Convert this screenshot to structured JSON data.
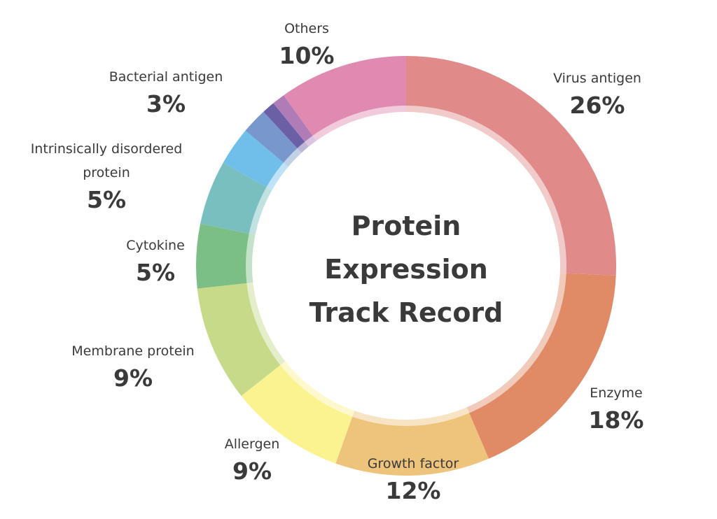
{
  "chart_data": {
    "type": "pie",
    "title": "Protein Expression Track Record",
    "categories": [
      "Virus antigen",
      "Enzyme",
      "Growth factor",
      "Allergen",
      "Membrane protein",
      "Cytokine",
      "Intrinsically disordered protein",
      "Bacterial antigen",
      null,
      null,
      null,
      "Others"
    ],
    "values": [
      26,
      18,
      12,
      9,
      9,
      5,
      5,
      3,
      2,
      1,
      1,
      10
    ],
    "value_labels": [
      "26%",
      "18%",
      "12%",
      "9%",
      "9%",
      "5%",
      "5%",
      "3%",
      null,
      null,
      null,
      "10%"
    ],
    "colors": [
      "#e08a8a",
      "#e08a66",
      "#eec47c",
      "#fbf290",
      "#c6da8a",
      "#7cbf86",
      "#79bfbf",
      "#70bfea",
      "#7897cc",
      "#6b5fa6",
      "#b07cb8",
      "#e08ab2"
    ]
  }
}
